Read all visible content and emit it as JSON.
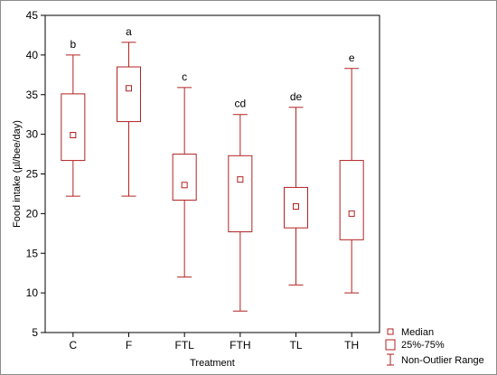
{
  "chart_data": {
    "type": "boxplot",
    "xlabel": "Treatment",
    "ylabel": "Food intake (µl/bee/day)",
    "ylim": [
      5,
      45
    ],
    "yticks": [
      5,
      10,
      15,
      20,
      25,
      30,
      35,
      40,
      45
    ],
    "categories": [
      "C",
      "F",
      "FTL",
      "FTH",
      "TL",
      "TH"
    ],
    "boxes": [
      {
        "category": "C",
        "median": 29.9,
        "q1": 26.7,
        "q3": 35.1,
        "min": 22.2,
        "max": 40.0,
        "letter": "b"
      },
      {
        "category": "F",
        "median": 35.8,
        "q1": 31.6,
        "q3": 38.5,
        "min": 22.2,
        "max": 41.6,
        "letter": "a"
      },
      {
        "category": "FTL",
        "median": 23.6,
        "q1": 21.7,
        "q3": 27.5,
        "min": 12.0,
        "max": 35.9,
        "letter": "c"
      },
      {
        "category": "FTH",
        "median": 24.3,
        "q1": 17.7,
        "q3": 27.3,
        "min": 7.7,
        "max": 32.5,
        "letter": "cd"
      },
      {
        "category": "TL",
        "median": 20.9,
        "q1": 18.2,
        "q3": 23.3,
        "min": 11.0,
        "max": 33.4,
        "letter": "de"
      },
      {
        "category": "TH",
        "median": 20.0,
        "q1": 16.7,
        "q3": 26.7,
        "min": 10.0,
        "max": 38.3,
        "letter": "e"
      }
    ],
    "legend": {
      "placement": "bottom-right",
      "entries": [
        "Median",
        "25%-75%",
        "Non-Outlier Range"
      ]
    },
    "colors": {
      "box": "#b22222",
      "axis": "#000000"
    },
    "grid": false
  }
}
